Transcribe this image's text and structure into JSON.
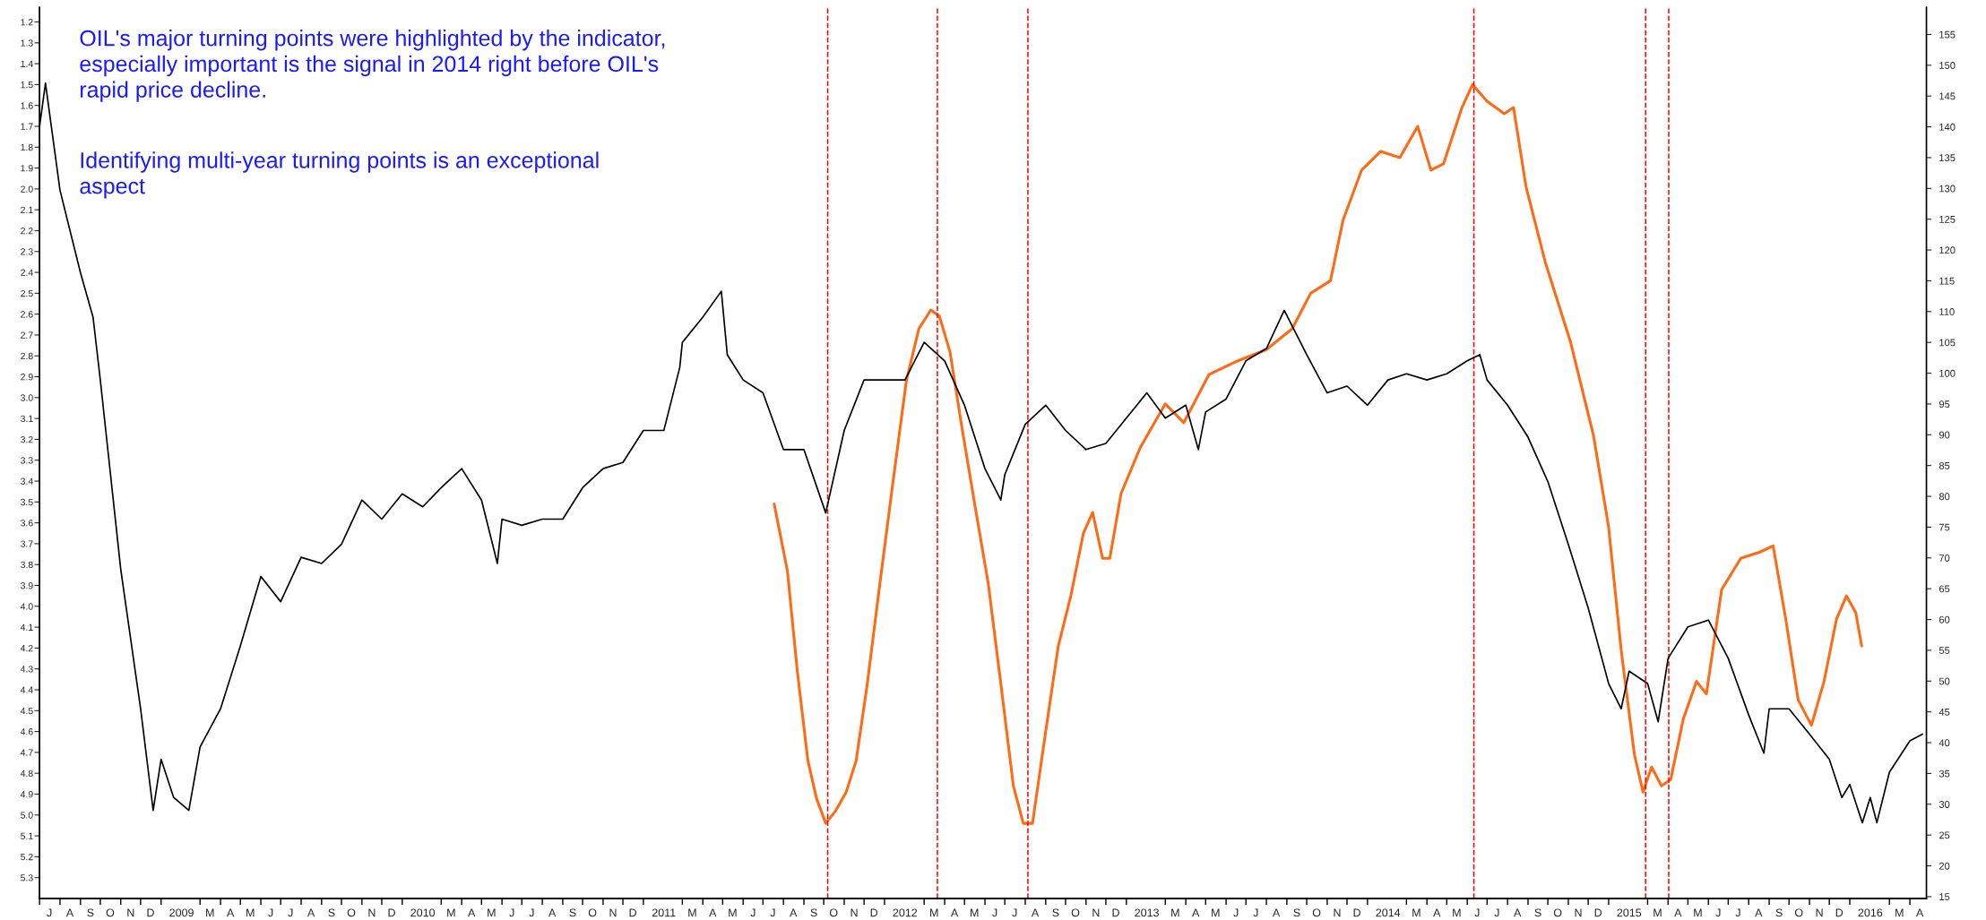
{
  "chart_data": {
    "type": "line",
    "annotations": [
      "OIL's major turning points were highlighted by the indicator,\nespecially important is the signal in 2014 right before OIL's\nrapid price decline.",
      "Identifying multi-year turning points is an exceptional\naspect"
    ],
    "xlim": [
      "2008-07-01",
      "2016-04-26"
    ],
    "ylim": [
      5.4,
      1.13
    ],
    "yticks": [
      1.2,
      1.3,
      1.4,
      1.5,
      1.6,
      1.7,
      1.8,
      1.9,
      {
        "value": 2,
        "label": "2.0"
      },
      2.1,
      2.2,
      2.3,
      2.4,
      2.5,
      2.6,
      2.7,
      2.8,
      2.9,
      {
        "value": 3,
        "label": "3.0"
      },
      3.1,
      3.2,
      3.3,
      3.4,
      3.5,
      3.6,
      3.7,
      3.8,
      3.9,
      {
        "value": 4,
        "label": "4.0"
      },
      4.1,
      4.2,
      4.3,
      4.4,
      4.5,
      4.6,
      4.7,
      4.8,
      4.9,
      {
        "value": 5,
        "label": "5.0"
      },
      5.1,
      5.2,
      5.3
    ],
    "y2lim": [
      14.7,
      159.4
    ],
    "y2ticks": [
      15,
      20,
      25,
      30,
      35,
      40,
      45,
      50,
      55,
      60,
      65,
      70,
      75,
      80,
      85,
      90,
      95,
      100,
      105,
      110,
      115,
      120,
      125,
      130,
      135,
      140,
      145,
      150,
      155
    ],
    "xticks": [
      {
        "value": "2008-07-01",
        "label": null
      },
      {
        "value": "2008-07-16",
        "label": "J"
      },
      {
        "value": "2008-08-01",
        "label": null
      },
      {
        "value": "2008-08-16",
        "label": "A"
      },
      {
        "value": "2008-09-01",
        "label": null
      },
      {
        "value": "2008-09-16",
        "label": "S"
      },
      {
        "value": "2008-10-01",
        "label": null
      },
      {
        "value": "2008-10-16",
        "label": "O"
      },
      {
        "value": "2008-11-01",
        "label": null
      },
      {
        "value": "2008-11-16",
        "label": "N"
      },
      {
        "value": "2008-12-01",
        "label": null
      },
      {
        "value": "2008-12-16",
        "label": "D"
      },
      {
        "value": "2009-01-01",
        "label": null
      },
      {
        "value": "2009-02-01",
        "label": "2009"
      },
      {
        "value": "2009-03-01",
        "label": null
      },
      {
        "value": "2009-03-16",
        "label": "M"
      },
      {
        "value": "2009-04-01",
        "label": null
      },
      {
        "value": "2009-04-16",
        "label": "A"
      },
      {
        "value": "2009-05-01",
        "label": null
      },
      {
        "value": "2009-05-16",
        "label": "M"
      },
      {
        "value": "2009-06-01",
        "label": null
      },
      {
        "value": "2009-06-16",
        "label": "J"
      },
      {
        "value": "2009-07-01",
        "label": null
      },
      {
        "value": "2009-07-16",
        "label": "J"
      },
      {
        "value": "2009-08-01",
        "label": null
      },
      {
        "value": "2009-08-16",
        "label": "A"
      },
      {
        "value": "2009-09-01",
        "label": null
      },
      {
        "value": "2009-09-16",
        "label": "S"
      },
      {
        "value": "2009-10-01",
        "label": null
      },
      {
        "value": "2009-10-16",
        "label": "O"
      },
      {
        "value": "2009-11-01",
        "label": null
      },
      {
        "value": "2009-11-16",
        "label": "N"
      },
      {
        "value": "2009-12-01",
        "label": null
      },
      {
        "value": "2009-12-16",
        "label": "D"
      },
      {
        "value": "2010-01-01",
        "label": null
      },
      {
        "value": "2010-02-01",
        "label": "2010"
      },
      {
        "value": "2010-03-01",
        "label": null
      },
      {
        "value": "2010-03-16",
        "label": "M"
      },
      {
        "value": "2010-04-01",
        "label": null
      },
      {
        "value": "2010-04-16",
        "label": "A"
      },
      {
        "value": "2010-05-01",
        "label": null
      },
      {
        "value": "2010-05-16",
        "label": "M"
      },
      {
        "value": "2010-06-01",
        "label": null
      },
      {
        "value": "2010-06-16",
        "label": "J"
      },
      {
        "value": "2010-07-01",
        "label": null
      },
      {
        "value": "2010-07-16",
        "label": "J"
      },
      {
        "value": "2010-08-01",
        "label": null
      },
      {
        "value": "2010-08-16",
        "label": "A"
      },
      {
        "value": "2010-09-01",
        "label": null
      },
      {
        "value": "2010-09-16",
        "label": "S"
      },
      {
        "value": "2010-10-01",
        "label": null
      },
      {
        "value": "2010-10-16",
        "label": "O"
      },
      {
        "value": "2010-11-01",
        "label": null
      },
      {
        "value": "2010-11-16",
        "label": "N"
      },
      {
        "value": "2010-12-01",
        "label": null
      },
      {
        "value": "2010-12-16",
        "label": "D"
      },
      {
        "value": "2011-01-01",
        "label": null
      },
      {
        "value": "2011-02-01",
        "label": "2011"
      },
      {
        "value": "2011-03-01",
        "label": null
      },
      {
        "value": "2011-03-16",
        "label": "M"
      },
      {
        "value": "2011-04-01",
        "label": null
      },
      {
        "value": "2011-04-16",
        "label": "A"
      },
      {
        "value": "2011-05-01",
        "label": null
      },
      {
        "value": "2011-05-16",
        "label": "M"
      },
      {
        "value": "2011-06-01",
        "label": null
      },
      {
        "value": "2011-06-16",
        "label": "J"
      },
      {
        "value": "2011-07-01",
        "label": null
      },
      {
        "value": "2011-07-16",
        "label": "J"
      },
      {
        "value": "2011-08-01",
        "label": null
      },
      {
        "value": "2011-08-16",
        "label": "A"
      },
      {
        "value": "2011-09-01",
        "label": null
      },
      {
        "value": "2011-09-16",
        "label": "S"
      },
      {
        "value": "2011-10-01",
        "label": null
      },
      {
        "value": "2011-10-16",
        "label": "O"
      },
      {
        "value": "2011-11-01",
        "label": null
      },
      {
        "value": "2011-11-16",
        "label": "N"
      },
      {
        "value": "2011-12-01",
        "label": null
      },
      {
        "value": "2011-12-16",
        "label": "D"
      },
      {
        "value": "2012-01-01",
        "label": null
      },
      {
        "value": "2012-02-01",
        "label": "2012"
      },
      {
        "value": "2012-03-01",
        "label": null
      },
      {
        "value": "2012-03-16",
        "label": "M"
      },
      {
        "value": "2012-04-01",
        "label": null
      },
      {
        "value": "2012-04-16",
        "label": "A"
      },
      {
        "value": "2012-05-01",
        "label": null
      },
      {
        "value": "2012-05-16",
        "label": "M"
      },
      {
        "value": "2012-06-01",
        "label": null
      },
      {
        "value": "2012-06-16",
        "label": "J"
      },
      {
        "value": "2012-07-01",
        "label": null
      },
      {
        "value": "2012-07-16",
        "label": "J"
      },
      {
        "value": "2012-08-01",
        "label": null
      },
      {
        "value": "2012-08-16",
        "label": "A"
      },
      {
        "value": "2012-09-01",
        "label": null
      },
      {
        "value": "2012-09-16",
        "label": "S"
      },
      {
        "value": "2012-10-01",
        "label": null
      },
      {
        "value": "2012-10-16",
        "label": "O"
      },
      {
        "value": "2012-11-01",
        "label": null
      },
      {
        "value": "2012-11-16",
        "label": "N"
      },
      {
        "value": "2012-12-01",
        "label": null
      },
      {
        "value": "2012-12-16",
        "label": "D"
      },
      {
        "value": "2013-01-01",
        "label": null
      },
      {
        "value": "2013-02-01",
        "label": "2013"
      },
      {
        "value": "2013-03-01",
        "label": null
      },
      {
        "value": "2013-03-16",
        "label": "M"
      },
      {
        "value": "2013-04-01",
        "label": null
      },
      {
        "value": "2013-04-16",
        "label": "A"
      },
      {
        "value": "2013-05-01",
        "label": null
      },
      {
        "value": "2013-05-16",
        "label": "M"
      },
      {
        "value": "2013-06-01",
        "label": null
      },
      {
        "value": "2013-06-16",
        "label": "J"
      },
      {
        "value": "2013-07-01",
        "label": null
      },
      {
        "value": "2013-07-16",
        "label": "J"
      },
      {
        "value": "2013-08-01",
        "label": null
      },
      {
        "value": "2013-08-16",
        "label": "A"
      },
      {
        "value": "2013-09-01",
        "label": null
      },
      {
        "value": "2013-09-16",
        "label": "S"
      },
      {
        "value": "2013-10-01",
        "label": null
      },
      {
        "value": "2013-10-16",
        "label": "O"
      },
      {
        "value": "2013-11-01",
        "label": null
      },
      {
        "value": "2013-11-16",
        "label": "N"
      },
      {
        "value": "2013-12-01",
        "label": null
      },
      {
        "value": "2013-12-16",
        "label": "D"
      },
      {
        "value": "2014-01-01",
        "label": null
      },
      {
        "value": "2014-02-01",
        "label": "2014"
      },
      {
        "value": "2014-03-01",
        "label": null
      },
      {
        "value": "2014-03-16",
        "label": "M"
      },
      {
        "value": "2014-04-01",
        "label": null
      },
      {
        "value": "2014-04-16",
        "label": "A"
      },
      {
        "value": "2014-05-01",
        "label": null
      },
      {
        "value": "2014-05-16",
        "label": "M"
      },
      {
        "value": "2014-06-01",
        "label": null
      },
      {
        "value": "2014-06-16",
        "label": "J"
      },
      {
        "value": "2014-07-01",
        "label": null
      },
      {
        "value": "2014-07-16",
        "label": "J"
      },
      {
        "value": "2014-08-01",
        "label": null
      },
      {
        "value": "2014-08-16",
        "label": "A"
      },
      {
        "value": "2014-09-01",
        "label": null
      },
      {
        "value": "2014-09-16",
        "label": "S"
      },
      {
        "value": "2014-10-01",
        "label": null
      },
      {
        "value": "2014-10-16",
        "label": "O"
      },
      {
        "value": "2014-11-01",
        "label": null
      },
      {
        "value": "2014-11-16",
        "label": "N"
      },
      {
        "value": "2014-12-01",
        "label": null
      },
      {
        "value": "2014-12-16",
        "label": "D"
      },
      {
        "value": "2015-01-01",
        "label": null
      },
      {
        "value": "2015-02-01",
        "label": "2015"
      },
      {
        "value": "2015-03-01",
        "label": null
      },
      {
        "value": "2015-03-16",
        "label": "M"
      },
      {
        "value": "2015-04-01",
        "label": null
      },
      {
        "value": "2015-04-16",
        "label": "A"
      },
      {
        "value": "2015-05-01",
        "label": null
      },
      {
        "value": "2015-05-16",
        "label": "M"
      },
      {
        "value": "2015-06-01",
        "label": null
      },
      {
        "value": "2015-06-16",
        "label": "J"
      },
      {
        "value": "2015-07-01",
        "label": null
      },
      {
        "value": "2015-07-16",
        "label": "J"
      },
      {
        "value": "2015-08-01",
        "label": null
      },
      {
        "value": "2015-08-16",
        "label": "A"
      },
      {
        "value": "2015-09-01",
        "label": null
      },
      {
        "value": "2015-09-16",
        "label": "S"
      },
      {
        "value": "2015-10-01",
        "label": null
      },
      {
        "value": "2015-10-16",
        "label": "O"
      },
      {
        "value": "2015-11-01",
        "label": null
      },
      {
        "value": "2015-11-16",
        "label": "N"
      },
      {
        "value": "2015-12-01",
        "label": null
      },
      {
        "value": "2015-12-16",
        "label": "D"
      },
      {
        "value": "2016-01-01",
        "label": null
      },
      {
        "value": "2016-02-01",
        "label": "2016"
      },
      {
        "value": "2016-03-01",
        "label": null
      },
      {
        "value": "2016-03-16",
        "label": "M"
      },
      {
        "value": "2016-04-01",
        "label": null
      },
      {
        "value": "2016-04-16",
        "label": "A"
      }
    ],
    "ref_lines": [
      {
        "axis": "x",
        "value": "2011-10-07",
        "color": "#ff0000",
        "line_style": "dashed"
      },
      {
        "axis": "x",
        "value": "2012-03-21",
        "color": "#ff0000",
        "line_style": "dashed"
      },
      {
        "axis": "x",
        "value": "2012-08-05",
        "color": "#ff0000",
        "line_style": "dashed"
      },
      {
        "axis": "x",
        "value": "2014-06-11",
        "color": "#ff0000",
        "line_style": "dashed"
      },
      {
        "axis": "x",
        "value": "2015-02-26",
        "color": "#ff0000",
        "line_style": "dashed"
      },
      {
        "axis": "x",
        "value": "2015-04-02",
        "color": "#ff0000",
        "line_style": "dashed"
      }
    ],
    "series": [
      {
        "axis": "y",
        "color": "#ff6a13",
        "x": [
          "2011-07-18",
          "2011-08-07",
          "2011-08-22",
          "2011-09-07",
          "2011-09-20",
          "2011-10-04",
          "2011-10-19",
          "2011-11-04",
          "2011-11-19",
          "2011-12-06",
          "2011-12-25",
          "2012-01-14",
          "2012-02-03",
          "2012-02-22",
          "2012-03-11",
          "2012-03-24",
          "2012-04-09",
          "2012-04-28",
          "2012-05-17",
          "2012-06-06",
          "2012-06-25",
          "2012-07-14",
          "2012-07-29",
          "2012-08-12",
          "2012-08-31",
          "2012-09-20",
          "2012-10-09",
          "2012-10-28",
          "2012-11-11",
          "2012-11-26",
          "2012-12-07",
          "2012-12-24",
          "2013-01-22",
          "2013-03-01",
          "2013-03-29",
          "2013-05-06",
          "2013-06-14",
          "2013-08-01",
          "2013-09-09",
          "2013-10-07",
          "2013-11-06",
          "2013-11-25",
          "2013-12-23",
          "2014-01-21",
          "2014-02-19",
          "2014-03-18",
          "2014-04-07",
          "2014-04-26",
          "2014-05-24",
          "2014-06-09",
          "2014-07-01",
          "2014-07-27",
          "2014-08-10",
          "2014-08-29",
          "2014-09-27",
          "2014-11-04",
          "2014-12-09",
          "2015-01-01",
          "2015-01-20",
          "2015-02-09",
          "2015-02-22",
          "2015-03-07",
          "2015-03-22",
          "2015-04-05",
          "2015-04-24",
          "2015-05-14",
          "2015-05-29",
          "2015-06-21",
          "2015-07-20",
          "2015-08-18",
          "2015-09-07",
          "2015-09-26",
          "2015-10-15",
          "2015-11-04",
          "2015-11-23",
          "2015-12-12",
          "2015-12-27",
          "2016-01-10",
          "2016-01-19"
        ],
        "values": [
          3.51,
          3.83,
          4.31,
          4.74,
          4.92,
          5.04,
          4.98,
          4.89,
          4.74,
          4.37,
          3.89,
          3.4,
          2.92,
          2.67,
          2.58,
          2.61,
          2.78,
          3.16,
          3.52,
          3.89,
          4.37,
          4.86,
          5.04,
          5.04,
          4.62,
          4.19,
          3.95,
          3.65,
          3.55,
          3.77,
          3.77,
          3.46,
          3.24,
          3.03,
          3.12,
          2.89,
          2.83,
          2.77,
          2.67,
          2.5,
          2.44,
          2.15,
          1.91,
          1.82,
          1.85,
          1.7,
          1.91,
          1.88,
          1.61,
          1.5,
          1.58,
          1.64,
          1.61,
          1.99,
          2.35,
          2.73,
          3.18,
          3.62,
          4.21,
          4.71,
          4.89,
          4.77,
          4.86,
          4.83,
          4.54,
          4.36,
          4.42,
          3.92,
          3.77,
          3.74,
          3.71,
          4.06,
          4.45,
          4.57,
          4.36,
          4.06,
          3.95,
          4.03,
          4.19
        ]
      },
      {
        "axis": "y2",
        "color": "#000000",
        "x": [
          "2008-07-01",
          "2008-07-10",
          "2008-08-01",
          "2008-09-01",
          "2008-09-20",
          "2008-10-01",
          "2008-11-01",
          "2008-12-01",
          "2008-12-20",
          "2009-01-01",
          "2009-01-20",
          "2009-02-12",
          "2009-03-01",
          "2009-04-01",
          "2009-05-01",
          "2009-06-01",
          "2009-07-01",
          "2009-08-01",
          "2009-09-01",
          "2009-10-01",
          "2009-11-01",
          "2009-12-01",
          "2010-01-01",
          "2010-02-01",
          "2010-03-01",
          "2010-04-01",
          "2010-05-01",
          "2010-05-25",
          "2010-06-01",
          "2010-07-01",
          "2010-08-01",
          "2010-09-01",
          "2010-10-01",
          "2010-11-01",
          "2010-12-01",
          "2011-01-01",
          "2011-02-01",
          "2011-02-25",
          "2011-03-01",
          "2011-04-01",
          "2011-04-29",
          "2011-05-08",
          "2011-06-01",
          "2011-07-01",
          "2011-08-01",
          "2011-09-01",
          "2011-10-04",
          "2011-11-01",
          "2011-12-01",
          "2012-01-01",
          "2012-02-01",
          "2012-03-01",
          "2012-04-01",
          "2012-05-01",
          "2012-06-01",
          "2012-06-25",
          "2012-07-01",
          "2012-08-01",
          "2012-09-01",
          "2012-10-01",
          "2012-11-01",
          "2012-12-01",
          "2013-01-01",
          "2013-02-01",
          "2013-03-01",
          "2013-04-01",
          "2013-04-20",
          "2013-05-01",
          "2013-06-01",
          "2013-07-01",
          "2013-08-01",
          "2013-08-28",
          "2013-10-01",
          "2013-11-01",
          "2013-12-01",
          "2014-01-01",
          "2014-02-01",
          "2014-03-01",
          "2014-04-01",
          "2014-05-01",
          "2014-06-01",
          "2014-06-20",
          "2014-07-01",
          "2014-08-01",
          "2014-09-01",
          "2014-10-01",
          "2014-11-01",
          "2014-12-01",
          "2015-01-01",
          "2015-01-20",
          "2015-02-01",
          "2015-03-01",
          "2015-03-17",
          "2015-04-01",
          "2015-05-01",
          "2015-06-01",
          "2015-07-01",
          "2015-08-01",
          "2015-08-24",
          "2015-09-01",
          "2015-10-01",
          "2015-11-01",
          "2015-12-01",
          "2015-12-20",
          "2016-01-01",
          "2016-01-20",
          "2016-02-01",
          "2016-02-11",
          "2016-03-01",
          "2016-04-01",
          "2016-04-20"
        ],
        "values": [
          140.0,
          147.1,
          129.7,
          116.3,
          109.1,
          98.9,
          68.1,
          45.5,
          29.0,
          37.3,
          31.1,
          29.0,
          39.3,
          45.5,
          55.7,
          67.0,
          62.9,
          70.1,
          69.1,
          72.2,
          79.4,
          76.3,
          80.4,
          78.3,
          81.4,
          84.5,
          79.4,
          69.1,
          76.3,
          75.3,
          76.3,
          76.3,
          81.4,
          84.5,
          85.5,
          90.7,
          90.7,
          100.9,
          105.0,
          109.1,
          113.3,
          103.0,
          98.9,
          96.8,
          87.6,
          87.6,
          77.3,
          90.7,
          98.9,
          98.9,
          98.9,
          105.0,
          102.0,
          94.8,
          84.5,
          79.4,
          83.5,
          91.7,
          94.8,
          90.7,
          87.6,
          88.6,
          92.7,
          96.8,
          92.7,
          94.8,
          87.6,
          93.7,
          95.8,
          102.0,
          104.0,
          110.2,
          103.0,
          96.8,
          97.9,
          94.8,
          98.9,
          99.9,
          98.9,
          99.9,
          102.0,
          103.0,
          98.9,
          94.8,
          89.6,
          82.4,
          72.2,
          61.9,
          49.6,
          45.5,
          51.6,
          49.6,
          43.4,
          53.7,
          58.8,
          59.9,
          53.7,
          44.5,
          38.3,
          45.5,
          45.5,
          41.4,
          37.3,
          31.1,
          33.2,
          27.0,
          31.1,
          27.0,
          35.2,
          40.3,
          41.4
        ]
      }
    ]
  }
}
